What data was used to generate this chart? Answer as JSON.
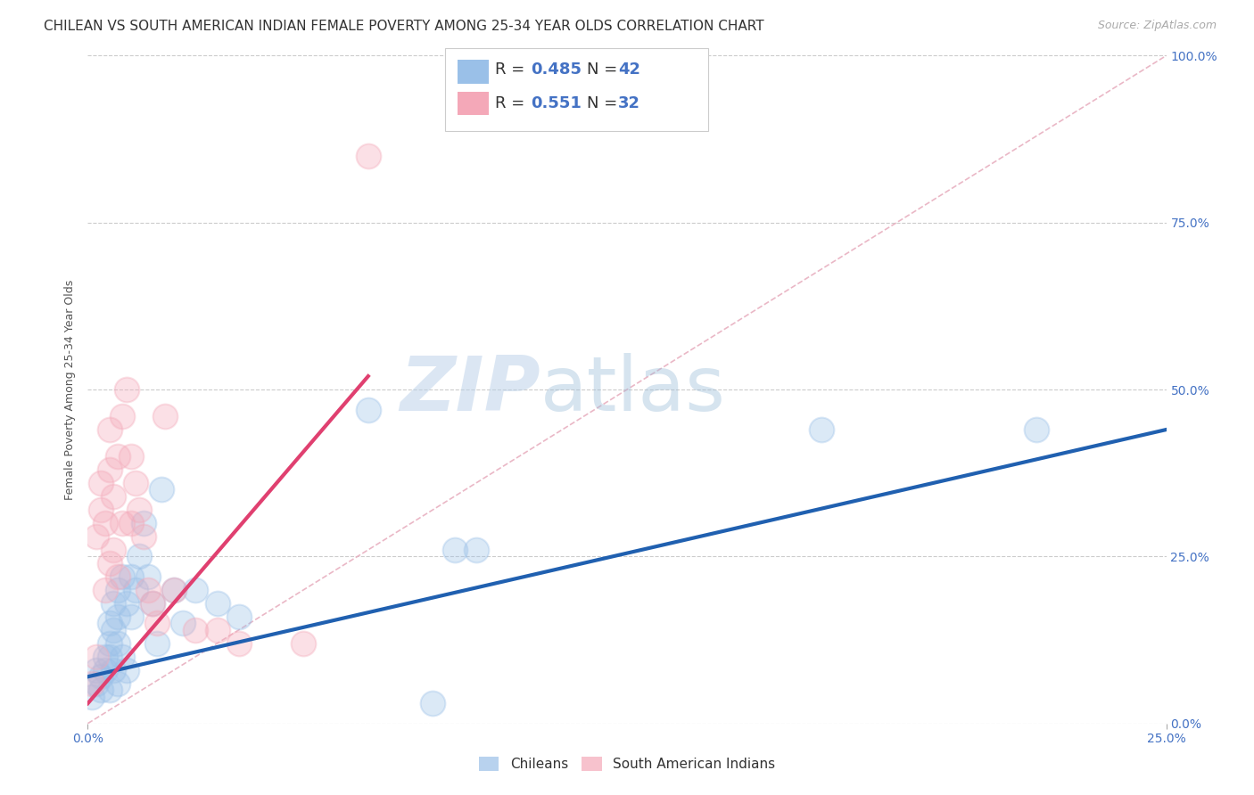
{
  "title": "CHILEAN VS SOUTH AMERICAN INDIAN FEMALE POVERTY AMONG 25-34 YEAR OLDS CORRELATION CHART",
  "source": "Source: ZipAtlas.com",
  "ylabel": "Female Poverty Among 25-34 Year Olds",
  "watermark_zip": "ZIP",
  "watermark_atlas": "atlas",
  "xlim": [
    0.0,
    0.25
  ],
  "ylim": [
    0.0,
    1.0
  ],
  "xticks": [
    0.0,
    0.25
  ],
  "yticks": [
    0.0,
    0.25,
    0.5,
    0.75,
    1.0
  ],
  "xticklabels": [
    "0.0%",
    "25.0%"
  ],
  "yticklabels_right": [
    "0.0%",
    "25.0%",
    "50.0%",
    "75.0%",
    "100.0%"
  ],
  "legend_r1": "0.485",
  "legend_n1": "42",
  "legend_r2": "0.551",
  "legend_n2": "32",
  "blue_color": "#9ac0e8",
  "pink_color": "#f4a8b8",
  "blue_line_color": "#2060b0",
  "pink_line_color": "#e04070",
  "diag_line_color": "#e8b0c0",
  "legend_text_color": "#4472c4",
  "tick_color": "#4472c4",
  "blue_scatter_x": [
    0.001,
    0.002,
    0.002,
    0.003,
    0.003,
    0.004,
    0.004,
    0.005,
    0.005,
    0.005,
    0.005,
    0.006,
    0.006,
    0.006,
    0.007,
    0.007,
    0.007,
    0.007,
    0.008,
    0.008,
    0.009,
    0.009,
    0.01,
    0.01,
    0.011,
    0.012,
    0.013,
    0.014,
    0.015,
    0.016,
    0.017,
    0.02,
    0.022,
    0.025,
    0.03,
    0.035,
    0.065,
    0.08,
    0.085,
    0.09,
    0.17,
    0.22
  ],
  "blue_scatter_y": [
    0.04,
    0.06,
    0.08,
    0.05,
    0.07,
    0.1,
    0.08,
    0.15,
    0.12,
    0.1,
    0.05,
    0.14,
    0.18,
    0.08,
    0.2,
    0.16,
    0.12,
    0.06,
    0.22,
    0.1,
    0.18,
    0.08,
    0.22,
    0.16,
    0.2,
    0.25,
    0.3,
    0.22,
    0.18,
    0.12,
    0.35,
    0.2,
    0.15,
    0.2,
    0.18,
    0.16,
    0.47,
    0.03,
    0.26,
    0.26,
    0.44,
    0.44
  ],
  "pink_scatter_x": [
    0.001,
    0.002,
    0.002,
    0.003,
    0.003,
    0.004,
    0.004,
    0.005,
    0.005,
    0.005,
    0.006,
    0.006,
    0.007,
    0.007,
    0.008,
    0.008,
    0.009,
    0.01,
    0.01,
    0.011,
    0.012,
    0.013,
    0.014,
    0.015,
    0.016,
    0.018,
    0.02,
    0.025,
    0.03,
    0.035,
    0.05,
    0.065
  ],
  "pink_scatter_y": [
    0.06,
    0.1,
    0.28,
    0.32,
    0.36,
    0.3,
    0.2,
    0.38,
    0.44,
    0.24,
    0.26,
    0.34,
    0.4,
    0.22,
    0.46,
    0.3,
    0.5,
    0.4,
    0.3,
    0.36,
    0.32,
    0.28,
    0.2,
    0.18,
    0.15,
    0.46,
    0.2,
    0.14,
    0.14,
    0.12,
    0.12,
    0.85
  ],
  "blue_trendline_x": [
    0.0,
    0.25
  ],
  "blue_trendline_y": [
    0.07,
    0.44
  ],
  "pink_trendline_x": [
    0.0,
    0.065
  ],
  "pink_trendline_y": [
    0.03,
    0.52
  ],
  "diag_line_x": [
    0.0,
    0.25
  ],
  "diag_line_y": [
    0.0,
    1.0
  ],
  "marker_size": 400,
  "marker_alpha": 0.35,
  "marker_lw": 1.5,
  "grid_color": "#cccccc",
  "background_color": "#ffffff",
  "title_fontsize": 11,
  "ylabel_fontsize": 9,
  "tick_fontsize": 10,
  "legend_fontsize": 13,
  "source_fontsize": 9
}
